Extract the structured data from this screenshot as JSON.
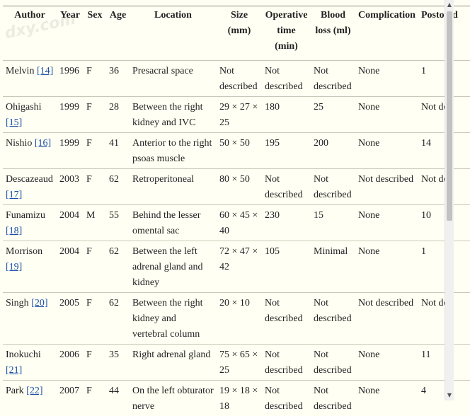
{
  "watermark": "dxy.com",
  "table": {
    "columns": [
      "Author",
      "Year",
      "Sex",
      "Age",
      "Location",
      "Size (mm)",
      "Operative time (min)",
      "Blood loss (ml)",
      "Complication",
      "Postop d"
    ],
    "rows": [
      {
        "author": "Melvin",
        "ref": "[14]",
        "year": "1996",
        "sex": "F",
        "age": "36",
        "location": "Presacral space",
        "size": "Not described",
        "optime": "Not described",
        "blood": "Not described",
        "complication": "None",
        "postop": "1"
      },
      {
        "author": "Ohigashi",
        "ref": "[15]",
        "year": "1999",
        "sex": "F",
        "age": "28",
        "location": "Between the right kidney and IVC",
        "size": "29 × 27 × 25",
        "optime": "180",
        "blood": "25",
        "complication": "None",
        "postop": "Not de"
      },
      {
        "author": "Nishio",
        "ref": "[16]",
        "year": "1999",
        "sex": "F",
        "age": "41",
        "location": "Anterior to the right psoas muscle",
        "size": "50 × 50",
        "optime": "195",
        "blood": "200",
        "complication": "None",
        "postop": "14"
      },
      {
        "author": "Descazeaud",
        "ref": "[17]",
        "year": "2003",
        "sex": "F",
        "age": "62",
        "location": "Retroperitoneal",
        "size": "80 × 50",
        "optime": "Not described",
        "blood": "Not described",
        "complication": "Not described",
        "postop": "Not de"
      },
      {
        "author": "Funamizu",
        "ref": "[18]",
        "year": "2004",
        "sex": "M",
        "age": "55",
        "location": "Behind the lesser omental sac",
        "size": "60 × 45 × 40",
        "optime": "230",
        "blood": "15",
        "complication": "None",
        "postop": "10"
      },
      {
        "author": "Morrison",
        "ref": "[19]",
        "year": "2004",
        "sex": "F",
        "age": "62",
        "location": "Between the left adrenal gland and kidney",
        "size": "72 × 47 × 42",
        "optime": "105",
        "blood": "Minimal",
        "complication": "None",
        "postop": "1"
      },
      {
        "author": "Singh",
        "ref": "[20]",
        "year": "2005",
        "sex": "F",
        "age": "62",
        "location": "Between the right kidney and vertebral column",
        "size": "20 × 10",
        "optime": "Not described",
        "blood": "Not described",
        "complication": "Not described",
        "postop": "Not de"
      },
      {
        "author": "Inokuchi",
        "ref": "[21]",
        "year": "2006",
        "sex": "F",
        "age": "35",
        "location": "Right adrenal gland",
        "size": "75 × 65 × 25",
        "optime": "Not described",
        "blood": "Not described",
        "complication": "None",
        "postop": "11"
      },
      {
        "author": "Park",
        "ref": "[22]",
        "year": "2007",
        "sex": "F",
        "age": "44",
        "location": "On the left obturator nerve",
        "size": "19 × 18 × 18",
        "optime": "Not described",
        "blood": "Not described",
        "complication": "None",
        "postop": "4"
      }
    ]
  },
  "scrollbar": {
    "up_glyph": "▲",
    "down_glyph": "▼",
    "position": 0.0
  }
}
